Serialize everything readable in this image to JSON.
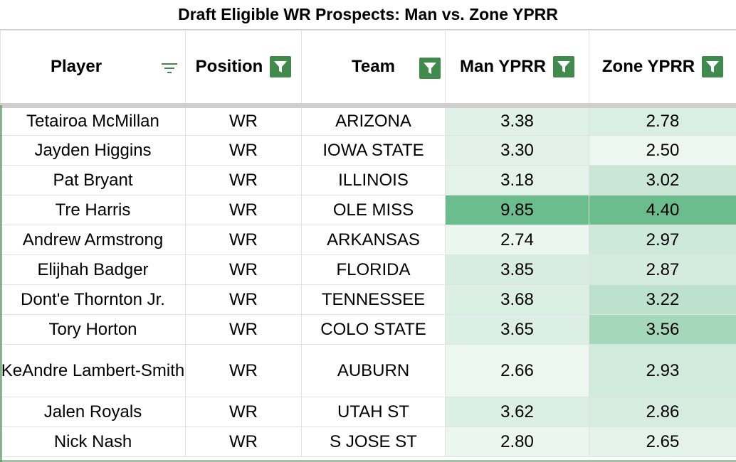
{
  "title": "Draft Eligible WR Prospects: Man vs. Zone YPRR",
  "colors": {
    "filter_button": "#3f8a4c",
    "scale_low": "#ffffff",
    "scale_high": "#6bbd8e"
  },
  "headers": {
    "player": "Player",
    "position": "Position",
    "team": "Team",
    "man": "Man YPRR",
    "zone": "Zone YPRR"
  },
  "icons": {
    "player_sort": "sort-lines-icon",
    "filter": "funnel-filter-icon"
  },
  "rows": [
    {
      "player": "Tetairoa McMillan",
      "position": "WR",
      "team": "ARIZONA",
      "man": "3.38",
      "zone": "2.78"
    },
    {
      "player": "Jayden Higgins",
      "position": "WR",
      "team": "IOWA STATE",
      "man": "3.30",
      "zone": "2.50"
    },
    {
      "player": "Pat Bryant",
      "position": "WR",
      "team": "ILLINOIS",
      "man": "3.18",
      "zone": "3.02"
    },
    {
      "player": "Tre Harris",
      "position": "WR",
      "team": "OLE MISS",
      "man": "9.85",
      "zone": "4.40"
    },
    {
      "player": "Andrew Armstrong",
      "position": "WR",
      "team": "ARKANSAS",
      "man": "2.74",
      "zone": "2.97"
    },
    {
      "player": "Elijhah Badger",
      "position": "WR",
      "team": "FLORIDA",
      "man": "3.85",
      "zone": "2.87"
    },
    {
      "player": "Dont'e Thornton Jr.",
      "position": "WR",
      "team": "TENNESSEE",
      "man": "3.68",
      "zone": "3.22"
    },
    {
      "player": "Tory Horton",
      "position": "WR",
      "team": "COLO STATE",
      "man": "3.65",
      "zone": "3.56"
    },
    {
      "player": "KeAndre Lambert-Smith",
      "position": "WR",
      "team": "AUBURN",
      "man": "2.66",
      "zone": "2.93"
    },
    {
      "player": "Jalen Royals",
      "position": "WR",
      "team": "UTAH ST",
      "man": "3.62",
      "zone": "2.86"
    },
    {
      "player": "Nick Nash",
      "position": "WR",
      "team": "S JOSE ST",
      "man": "2.80",
      "zone": "2.65"
    }
  ]
}
